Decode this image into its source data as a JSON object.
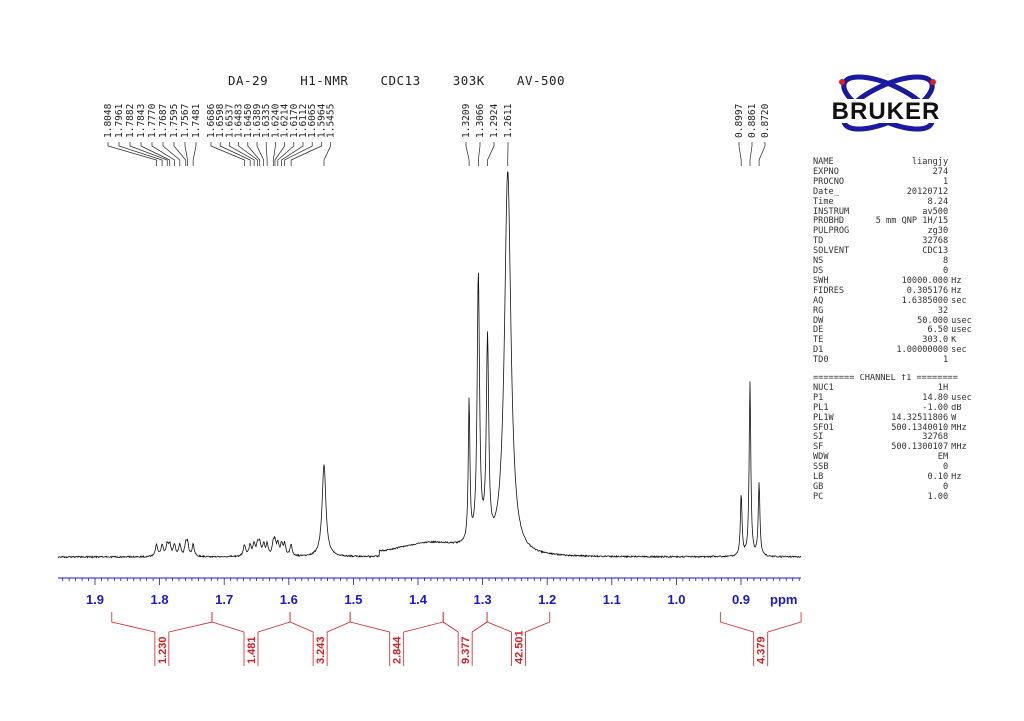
{
  "title": "DA-29    H1-NMR    CDC13    303K    AV-500",
  "logo": {
    "text": "BRUKER",
    "color": "#1a1aa0"
  },
  "params": [
    [
      "NAME",
      "liangjy",
      ""
    ],
    [
      "EXPNO",
      "274",
      ""
    ],
    [
      "PROCNO",
      "1",
      ""
    ],
    [
      "Date_",
      "20120712",
      ""
    ],
    [
      "Time",
      "8.24",
      ""
    ],
    [
      "INSTRUM",
      "av500",
      ""
    ],
    [
      "PROBHD",
      "5 mm QNP 1H/15",
      ""
    ],
    [
      "PULPROG",
      "zg30",
      ""
    ],
    [
      "TD",
      "32768",
      ""
    ],
    [
      "SOLVENT",
      "CDC13",
      ""
    ],
    [
      "NS",
      "8",
      ""
    ],
    [
      "DS",
      "0",
      ""
    ],
    [
      "SWH",
      "10000.000",
      "Hz"
    ],
    [
      "FIDRES",
      "0.305176",
      "Hz"
    ],
    [
      "AQ",
      "1.6385000",
      "sec"
    ],
    [
      "RG",
      "32",
      ""
    ],
    [
      "DW",
      "50.000",
      "usec"
    ],
    [
      "DE",
      "6.50",
      "usec"
    ],
    [
      "TE",
      "303.0",
      "K"
    ],
    [
      "D1",
      "1.00000000",
      "sec"
    ],
    [
      "TD0",
      "1",
      ""
    ]
  ],
  "channel_header": "======== CHANNEL f1 ========",
  "channel_params": [
    [
      "NUC1",
      "1H",
      ""
    ],
    [
      "P1",
      "14.80",
      "usec"
    ],
    [
      "PL1",
      "-1.00",
      "dB"
    ],
    [
      "PL1W",
      "14.32511806",
      "W"
    ],
    [
      "SFO1",
      "500.1340010",
      "MHz"
    ],
    [
      "SI",
      "32768",
      ""
    ],
    [
      "SF",
      "500.1300107",
      "MHz"
    ],
    [
      "WDW",
      "EM",
      ""
    ],
    [
      "SSB",
      "0",
      ""
    ],
    [
      "LB",
      "0.10",
      "Hz"
    ],
    [
      "GB",
      "0",
      ""
    ],
    [
      "PC",
      "1.00",
      ""
    ]
  ],
  "chart_data": {
    "type": "line",
    "xlabel": "ppm",
    "xlim": [
      1.957,
      0.807
    ],
    "x_ticks": [
      "1.9",
      "1.8",
      "1.7",
      "1.6",
      "1.5",
      "1.4",
      "1.3",
      "1.2",
      "1.1",
      "1.0",
      "0.9"
    ],
    "axis_color": "#1a1acc",
    "integral_color": "#d42020",
    "peak_groups": [
      [
        "1.8048",
        "1.7961",
        "1.7882",
        "1.7843",
        "1.7770",
        "1.7687",
        "1.7595",
        "1.7567",
        "1.7481"
      ],
      [
        "1.6686",
        "1.6598",
        "1.6537",
        "1.6483",
        "1.6450",
        "1.6389",
        "1.6335",
        "1.6240",
        "1.6214",
        "1.6170",
        "1.6112",
        "1.6065",
        "1.5964",
        "1.5455"
      ],
      [
        "1.3209",
        "1.3066",
        "1.2924",
        "1.2611"
      ],
      [
        "0.8997",
        "0.8861",
        "0.8720"
      ]
    ],
    "integrals": [
      {
        "from": 1.874,
        "to": 1.719,
        "value": "1.230"
      },
      {
        "from": 1.719,
        "to": 1.598,
        "value": "1.481"
      },
      {
        "from": 1.598,
        "to": 1.505,
        "value": "3.243"
      },
      {
        "from": 1.505,
        "to": 1.361,
        "value": "2.844"
      },
      {
        "from": 1.361,
        "to": 1.293,
        "value": "9.377"
      },
      {
        "from": 1.293,
        "to": 1.196,
        "value": "42.501"
      },
      {
        "from": 0.932,
        "to": 0.807,
        "value": "4.379"
      }
    ],
    "peaks_relative_intensity": [
      {
        "ppm": 1.2611,
        "h": 1.0,
        "w": 0.006
      },
      {
        "ppm": 1.3066,
        "h": 0.7,
        "w": 0.0022
      },
      {
        "ppm": 1.2924,
        "h": 0.52,
        "w": 0.0022
      },
      {
        "ppm": 1.3209,
        "h": 0.37,
        "w": 0.0015
      },
      {
        "ppm": 1.5455,
        "h": 0.24,
        "w": 0.0035
      },
      {
        "ppm": 0.8861,
        "h": 0.45,
        "w": 0.0015
      },
      {
        "ppm": 0.8997,
        "h": 0.16,
        "w": 0.0015
      },
      {
        "ppm": 0.872,
        "h": 0.19,
        "w": 0.0015
      }
    ]
  }
}
